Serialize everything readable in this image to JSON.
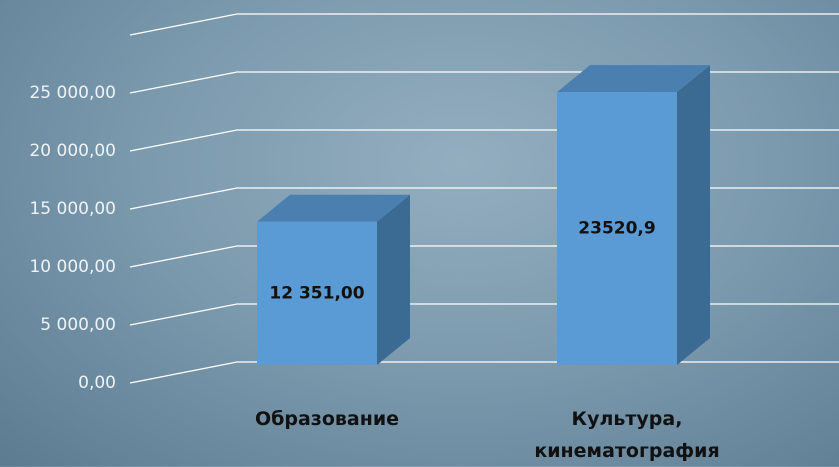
{
  "chart_data": {
    "type": "bar3d",
    "categories": [
      "Образование",
      "Культура, кинематография"
    ],
    "values": [
      12351,
      23520.9
    ],
    "value_labels": [
      "12 351,00",
      "23520,9"
    ],
    "colors": {
      "front": "#5b9bd5",
      "side": "#3b6a92",
      "top": "#4a7fb0"
    },
    "ylim": [
      0,
      30000
    ],
    "yticks": [
      {
        "value": 0,
        "label": "0,00"
      },
      {
        "value": 5000,
        "label": "5 000,00"
      },
      {
        "value": 10000,
        "label": "10 000,00"
      },
      {
        "value": 15000,
        "label": "15 000,00"
      },
      {
        "value": 20000,
        "label": "20 000,00"
      },
      {
        "value": 25000,
        "label": "25 000,00"
      }
    ],
    "grid": true
  }
}
